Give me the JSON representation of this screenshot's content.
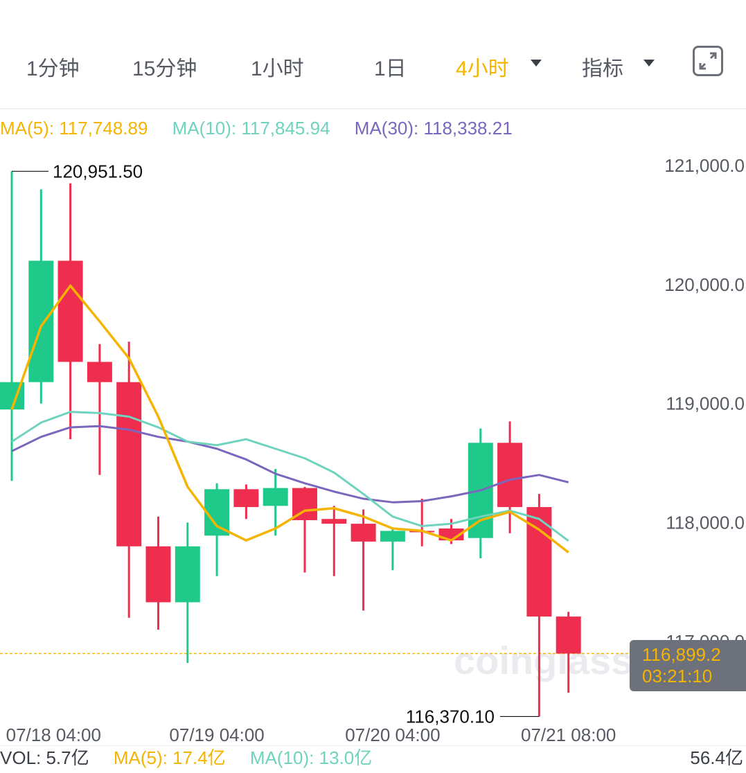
{
  "toolbar": {
    "tabs": [
      {
        "label": "1分钟"
      },
      {
        "label": "15分钟"
      },
      {
        "label": "1小时"
      },
      {
        "label": "1日"
      },
      {
        "label": "4小时"
      },
      {
        "label": "指标"
      }
    ],
    "active_tab": "4小时",
    "accent_color": "#f4b400",
    "fullscreen_icon": "expand-icon"
  },
  "ma_legend": {
    "ma5": "MA(5): 117,748.89",
    "ma10": "MA(10): 117,845.94",
    "ma30": "MA(30): 118,338.21"
  },
  "volume_legend": {
    "vol": "VOL: 5.7亿",
    "ma5": "MA(5): 17.4亿",
    "ma10": "MA(10): 13.0亿",
    "max": "56.4亿"
  },
  "price_tag": {
    "price": "116,899.2",
    "countdown": "03:21:10"
  },
  "watermark": "coinglass",
  "chart_data": {
    "type": "candlestick",
    "colors": {
      "up": "#1ec98a",
      "down": "#ef2e4f",
      "ma5": "#f4b400",
      "ma10": "#6fd3bd",
      "ma30": "#7a67bd"
    },
    "y_ticks": [
      "121,000.0",
      "120,000.0",
      "119,000.0",
      "118,000.0",
      "117,000.0"
    ],
    "y_tick_values": [
      121000,
      120000,
      119000,
      118000,
      117000
    ],
    "x_labels": [
      {
        "index": 1,
        "label": "07/18 04:00"
      },
      {
        "index": 7,
        "label": "07/19 04:00"
      },
      {
        "index": 13,
        "label": "07/20 04:00"
      },
      {
        "index": 19,
        "label": "07/21 08:00"
      }
    ],
    "annotations": {
      "high": "120,951.50",
      "high_value": 120951.5,
      "high_index": 0,
      "low": "116,370.10",
      "low_value": 116370.1,
      "low_index": 18
    },
    "current_price": 116899.2,
    "candles": [
      {
        "o": 118950,
        "h": 120951.5,
        "l": 118350,
        "c": 119180
      },
      {
        "o": 119180,
        "h": 120800,
        "l": 119000,
        "c": 120200
      },
      {
        "o": 120200,
        "h": 120850,
        "l": 118700,
        "c": 119350
      },
      {
        "o": 119350,
        "h": 119500,
        "l": 118400,
        "c": 119180
      },
      {
        "o": 119180,
        "h": 119520,
        "l": 117200,
        "c": 117800
      },
      {
        "o": 117800,
        "h": 118050,
        "l": 117100,
        "c": 117330
      },
      {
        "o": 117330,
        "h": 118000,
        "l": 116820,
        "c": 117800
      },
      {
        "o": 117890,
        "h": 118330,
        "l": 117550,
        "c": 118280
      },
      {
        "o": 118280,
        "h": 118320,
        "l": 118030,
        "c": 118130
      },
      {
        "o": 118140,
        "h": 118450,
        "l": 117890,
        "c": 118290
      },
      {
        "o": 118290,
        "h": 118300,
        "l": 117580,
        "c": 118020
      },
      {
        "o": 118030,
        "h": 118140,
        "l": 117550,
        "c": 117990
      },
      {
        "o": 117990,
        "h": 118110,
        "l": 117260,
        "c": 117840
      },
      {
        "o": 117840,
        "h": 117960,
        "l": 117600,
        "c": 117930
      },
      {
        "o": 117930,
        "h": 118200,
        "l": 117800,
        "c": 117920
      },
      {
        "o": 117950,
        "h": 118030,
        "l": 117820,
        "c": 117850
      },
      {
        "o": 117870,
        "h": 118790,
        "l": 117700,
        "c": 118670
      },
      {
        "o": 118670,
        "h": 118850,
        "l": 117910,
        "c": 118130
      },
      {
        "o": 118130,
        "h": 118240,
        "l": 116370.1,
        "c": 117210
      },
      {
        "o": 117210,
        "h": 117250,
        "l": 116570,
        "c": 116899.2
      }
    ],
    "ma5": [
      118950,
      119650,
      119990,
      119690,
      119380,
      118890,
      118300,
      117970,
      117850,
      117950,
      118100,
      118120,
      118050,
      117950,
      117930,
      117850,
      118020,
      118090,
      117940,
      117749
    ],
    "ma10": [
      118680,
      118840,
      118930,
      118920,
      118890,
      118800,
      118680,
      118650,
      118700,
      118620,
      118540,
      118420,
      118240,
      118050,
      117970,
      117990,
      118050,
      118100,
      118030,
      117846
    ],
    "ma30": [
      118600,
      118720,
      118800,
      118810,
      118780,
      118720,
      118680,
      118620,
      118530,
      118410,
      118330,
      118260,
      118200,
      118170,
      118180,
      118220,
      118270,
      118360,
      118400,
      118338
    ]
  }
}
